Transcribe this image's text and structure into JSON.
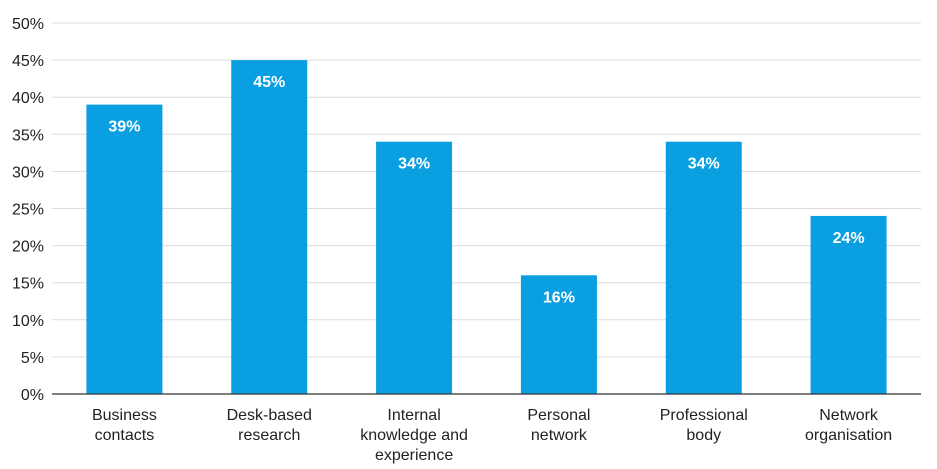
{
  "chart_data": {
    "type": "bar",
    "categories": [
      [
        "Business",
        "contacts"
      ],
      [
        "Desk-based",
        "research"
      ],
      [
        "Internal",
        "knowledge and",
        "experience"
      ],
      [
        "Personal",
        "network"
      ],
      [
        "Professional",
        "body"
      ],
      [
        "Network",
        "organisation"
      ]
    ],
    "values": [
      39,
      45,
      34,
      16,
      34,
      24
    ],
    "data_labels": [
      "39%",
      "45%",
      "34%",
      "16%",
      "34%",
      "24%"
    ],
    "y_ticks": [
      0,
      5,
      10,
      15,
      20,
      25,
      30,
      35,
      40,
      45,
      50
    ],
    "y_tick_labels": [
      "0%",
      "5%",
      "10%",
      "15%",
      "20%",
      "25%",
      "30%",
      "35%",
      "40%",
      "45%",
      "50%"
    ],
    "ylim": [
      0,
      50
    ],
    "grid": true,
    "bar_color": "#0a9fe0",
    "title": "",
    "xlabel": "",
    "ylabel": ""
  }
}
